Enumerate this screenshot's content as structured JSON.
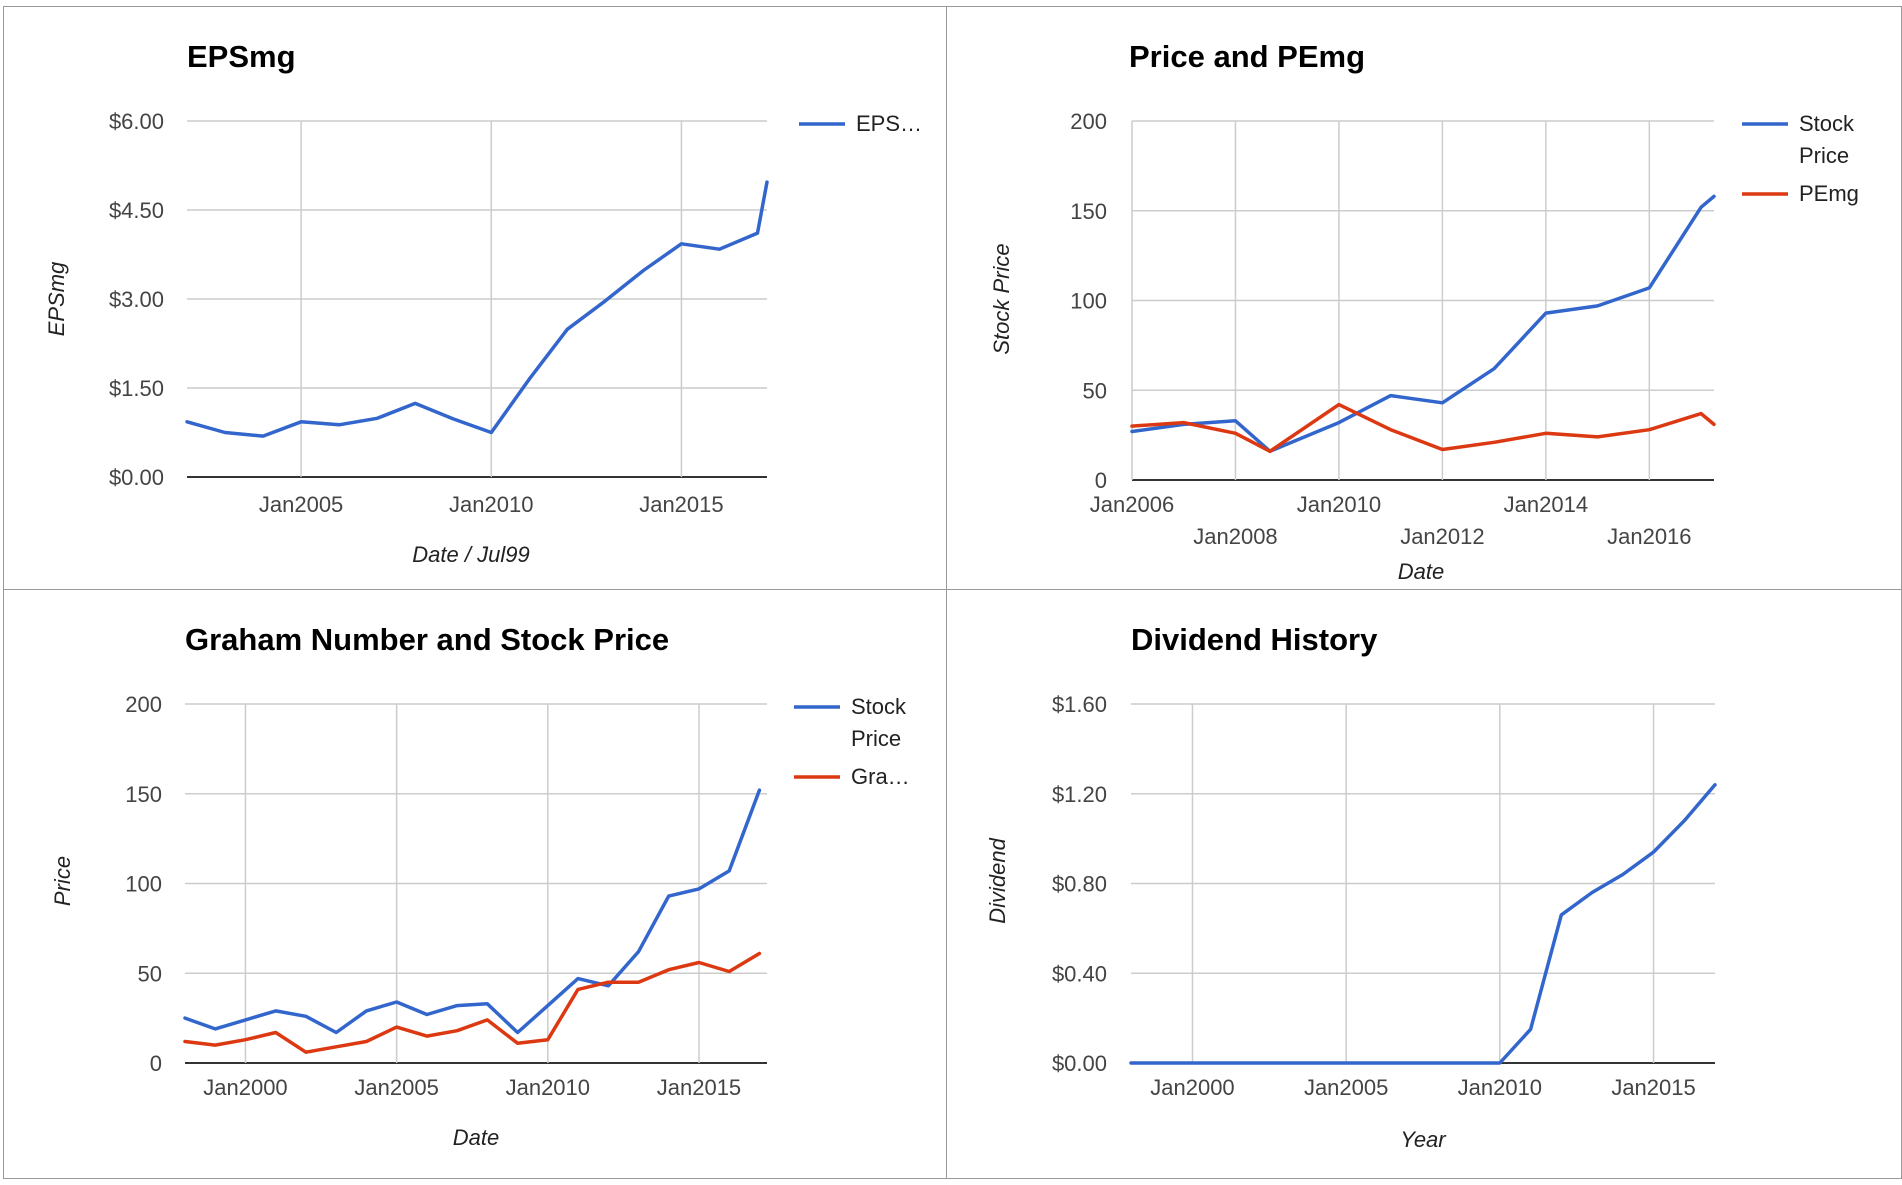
{
  "chart_data": [
    {
      "type": "line",
      "title": "EPSmg",
      "xlabel": "Date / Jul99",
      "ylabel": "EPSmg",
      "x_ticks": [
        "Jan2005",
        "Jan2010",
        "Jan2015"
      ],
      "y_ticks": [
        "$0.00",
        "$1.50",
        "$3.00",
        "$4.50",
        "$6.00"
      ],
      "ylim": [
        0,
        6
      ],
      "xlim": [
        "2002-01",
        "2017-04"
      ],
      "legend": "right",
      "grid": true,
      "series": [
        {
          "name": "EPS…",
          "color": "#3366cc",
          "x": [
            "2002-01",
            "2003-01",
            "2004-01",
            "2005-01",
            "2006-01",
            "2007-01",
            "2008-01",
            "2009-01",
            "2010-01",
            "2011-01",
            "2012-01",
            "2013-01",
            "2014-01",
            "2015-01",
            "2016-01",
            "2017-01",
            "2017-04"
          ],
          "y": [
            0.93,
            0.75,
            0.69,
            0.93,
            0.88,
            0.99,
            1.24,
            0.98,
            0.75,
            1.65,
            2.49,
            2.97,
            3.48,
            3.93,
            3.84,
            4.11,
            4.97
          ]
        }
      ]
    },
    {
      "type": "line",
      "title": "Price and PEmg",
      "xlabel": "Date",
      "ylabel": "Stock Price",
      "x_ticks": [
        "Jan2006",
        "Jan2008",
        "Jan2010",
        "Jan2012",
        "Jan2014",
        "Jan2016"
      ],
      "y_ticks": [
        "0",
        "50",
        "100",
        "150",
        "200"
      ],
      "ylim": [
        0,
        200
      ],
      "xlim": [
        "2006-01",
        "2017-04"
      ],
      "legend": "right",
      "grid": true,
      "series": [
        {
          "name": "Stock Price",
          "color": "#3366cc",
          "x": [
            "2006-01",
            "2007-01",
            "2008-01",
            "2008-09",
            "2010-01",
            "2011-01",
            "2012-01",
            "2013-01",
            "2014-01",
            "2015-01",
            "2016-01",
            "2017-01",
            "2017-04"
          ],
          "y": [
            27,
            31,
            33,
            16,
            32,
            47,
            43,
            62,
            93,
            97,
            107,
            152,
            158
          ]
        },
        {
          "name": "PEmg",
          "color": "#dc3912",
          "x": [
            "2006-01",
            "2007-01",
            "2008-01",
            "2008-09",
            "2010-01",
            "2011-01",
            "2012-01",
            "2013-01",
            "2014-01",
            "2015-01",
            "2016-01",
            "2017-01",
            "2017-04"
          ],
          "y": [
            30,
            32,
            26,
            16,
            42,
            28,
            17,
            21,
            26,
            24,
            28,
            37,
            31
          ]
        }
      ]
    },
    {
      "type": "line",
      "title": "Graham Number and Stock Price",
      "xlabel": "Date",
      "ylabel": "Price",
      "x_ticks": [
        "Jan2000",
        "Jan2005",
        "Jan2010",
        "Jan2015"
      ],
      "y_ticks": [
        "0",
        "50",
        "100",
        "150",
        "200"
      ],
      "ylim": [
        0,
        200
      ],
      "xlim": [
        "1998-01",
        "2017-04"
      ],
      "legend": "right",
      "grid": true,
      "series": [
        {
          "name": "Stock Price",
          "color": "#3366cc",
          "x": [
            "1998-01",
            "1999-01",
            "2000-01",
            "2001-01",
            "2002-01",
            "2003-01",
            "2004-01",
            "2005-01",
            "2006-01",
            "2007-01",
            "2008-01",
            "2009-01",
            "2010-01",
            "2011-01",
            "2012-01",
            "2013-01",
            "2014-01",
            "2015-01",
            "2016-01",
            "2017-01"
          ],
          "y": [
            25,
            19,
            24,
            29,
            26,
            17,
            29,
            34,
            27,
            32,
            33,
            17,
            32,
            47,
            43,
            62,
            93,
            97,
            107,
            152
          ]
        },
        {
          "name": "Gra…",
          "color": "#dc3912",
          "x": [
            "1998-01",
            "1999-01",
            "2000-01",
            "2001-01",
            "2002-01",
            "2003-01",
            "2004-01",
            "2005-01",
            "2006-01",
            "2007-01",
            "2008-01",
            "2009-01",
            "2010-01",
            "2011-01",
            "2012-01",
            "2013-01",
            "2014-01",
            "2015-01",
            "2016-01",
            "2017-01"
          ],
          "y": [
            12,
            10,
            13,
            17,
            6,
            9,
            12,
            20,
            15,
            18,
            24,
            11,
            13,
            41,
            45,
            45,
            52,
            56,
            51,
            61
          ]
        }
      ]
    },
    {
      "type": "line",
      "title": "Dividend History",
      "xlabel": "Year",
      "ylabel": "Dividend",
      "x_ticks": [
        "Jan2000",
        "Jan2005",
        "Jan2010",
        "Jan2015"
      ],
      "y_ticks": [
        "$0.00",
        "$0.40",
        "$0.80",
        "$1.20",
        "$1.60"
      ],
      "ylim": [
        0,
        1.6
      ],
      "xlim": [
        "1998-01",
        "2017-01"
      ],
      "legend": "none",
      "grid": true,
      "series": [
        {
          "name": "",
          "color": "#3366cc",
          "x": [
            "1998-01",
            "1999-01",
            "2000-01",
            "2001-01",
            "2002-01",
            "2003-01",
            "2004-01",
            "2005-01",
            "2006-01",
            "2007-01",
            "2008-01",
            "2009-01",
            "2010-01",
            "2011-01",
            "2012-01",
            "2013-01",
            "2014-01",
            "2015-01",
            "2016-01",
            "2017-01"
          ],
          "y": [
            0,
            0,
            0,
            0,
            0,
            0,
            0,
            0,
            0,
            0,
            0,
            0,
            0,
            0.15,
            0.66,
            0.76,
            0.84,
            0.94,
            1.08,
            1.24
          ]
        }
      ]
    }
  ]
}
